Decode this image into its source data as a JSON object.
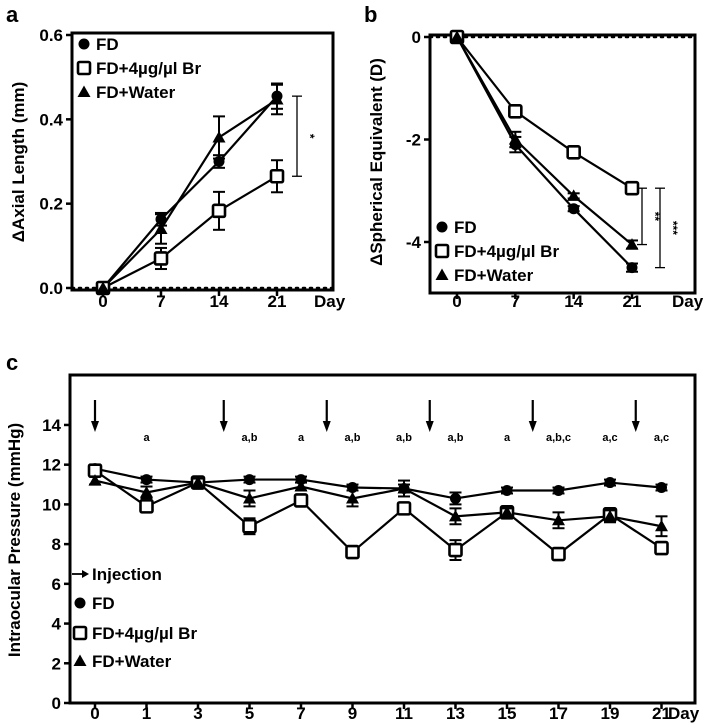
{
  "chart_data": [
    {
      "panel": "a",
      "type": "line",
      "title": "",
      "xlabel": "Day",
      "ylabel": "ΔAxial Length (mm)",
      "x": [
        0,
        7,
        14,
        21
      ],
      "xticks": [
        "0",
        "7",
        "14",
        "21"
      ],
      "ylim": [
        0,
        0.6
      ],
      "yticks": [
        "0.0",
        "0.2",
        "0.4",
        "0.6"
      ],
      "ytick_values": [
        0,
        0.2,
        0.4,
        0.6
      ],
      "legend_position": "top-left",
      "series": [
        {
          "name": "FD",
          "marker": "circle",
          "values": [
            0,
            0.163,
            0.3,
            0.455
          ],
          "errors": [
            0,
            0.015,
            0.015,
            0.03
          ]
        },
        {
          "name": "FD+4µg/µl Br",
          "marker": "open-square",
          "values": [
            0,
            0.07,
            0.183,
            0.265
          ],
          "errors": [
            0,
            0.025,
            0.045,
            0.038
          ]
        },
        {
          "name": "FD+Water",
          "marker": "triangle",
          "values": [
            0,
            0.14,
            0.357,
            0.447
          ],
          "errors": [
            0,
            0.035,
            0.05,
            0.035
          ]
        }
      ],
      "significance": [
        {
          "label": "*",
          "from": 0.455,
          "to": 0.265
        }
      ]
    },
    {
      "panel": "b",
      "type": "line",
      "title": "",
      "xlabel": "Day",
      "ylabel": "ΔSpherical Equivalent (D)",
      "x": [
        0,
        7,
        14,
        21
      ],
      "xticks": [
        "0",
        "7",
        "14",
        "21"
      ],
      "ylim": [
        -5,
        0
      ],
      "yticks": [
        "0",
        "-2",
        "-4"
      ],
      "ytick_values": [
        0,
        -2,
        -4
      ],
      "legend_position": "bottom-left",
      "series": [
        {
          "name": "FD",
          "marker": "circle",
          "values": [
            0,
            -2.1,
            -3.35,
            -4.5
          ],
          "errors": [
            0,
            0.15,
            0.05,
            0.08
          ]
        },
        {
          "name": "FD+4µg/µl Br",
          "marker": "open-square",
          "values": [
            0,
            -1.45,
            -2.25,
            -2.95
          ],
          "errors": [
            0,
            0.05,
            0.05,
            0.05
          ]
        },
        {
          "name": "FD+Water",
          "marker": "triangle",
          "values": [
            0,
            -2.0,
            -3.1,
            -4.05
          ],
          "errors": [
            0,
            0.15,
            0.05,
            0.08
          ]
        }
      ],
      "significance": [
        {
          "label": "**",
          "from": -2.95,
          "to": -4.05
        },
        {
          "label": "***",
          "from": -2.95,
          "to": -4.5
        }
      ]
    },
    {
      "panel": "c",
      "type": "line",
      "title": "",
      "xlabel": "Day",
      "ylabel": "Intraocular Pressure (mmHg)",
      "x": [
        0,
        1,
        3,
        5,
        7,
        9,
        11,
        13,
        15,
        17,
        19,
        21
      ],
      "xticks": [
        "0",
        "1",
        "3",
        "5",
        "7",
        "9",
        "11",
        "13",
        "15",
        "17",
        "19",
        "21"
      ],
      "ylim": [
        0,
        15
      ],
      "yticks": [
        "0",
        "2",
        "4",
        "6",
        "8",
        "10",
        "12",
        "14"
      ],
      "ytick_values": [
        0,
        2,
        4,
        6,
        8,
        10,
        12,
        14
      ],
      "legend_position": "bottom-left",
      "injection_label": "Injection",
      "injection_days": [
        0,
        4,
        8,
        12,
        16,
        20
      ],
      "series": [
        {
          "name": "FD",
          "marker": "circle",
          "values": [
            11.8,
            11.25,
            11.1,
            11.25,
            11.25,
            10.85,
            10.8,
            10.3,
            10.7,
            10.7,
            11.1,
            10.85
          ],
          "errors": [
            0.2,
            0.15,
            0.15,
            0.15,
            0.15,
            0.15,
            0.2,
            0.3,
            0.15,
            0.15,
            0.15,
            0.15
          ]
        },
        {
          "name": "FD+4µg/µl Br",
          "marker": "open-square",
          "values": [
            11.7,
            9.9,
            11.1,
            8.9,
            10.2,
            7.6,
            9.8,
            7.7,
            9.6,
            7.5,
            9.5,
            7.8
          ],
          "errors": [
            0.3,
            0.2,
            0.2,
            0.4,
            0.2,
            0.2,
            0.2,
            0.5,
            0.3,
            0.2,
            0.3,
            0.3
          ]
        },
        {
          "name": "FD+Water",
          "marker": "triangle",
          "values": [
            11.2,
            10.6,
            11.1,
            10.3,
            10.9,
            10.3,
            10.8,
            9.4,
            9.6,
            9.2,
            9.4,
            8.9
          ],
          "errors": [
            0.2,
            0.3,
            0.2,
            0.4,
            0.2,
            0.4,
            0.4,
            0.4,
            0.2,
            0.4,
            0.3,
            0.5
          ]
        }
      ],
      "annotations": [
        "",
        "a",
        "",
        "a,b",
        "a",
        "a,b",
        "a,b",
        "a,b",
        "a",
        "a,b,c",
        "a,c",
        "a,c"
      ]
    }
  ],
  "panel_labels": [
    "a",
    "b",
    "c"
  ]
}
